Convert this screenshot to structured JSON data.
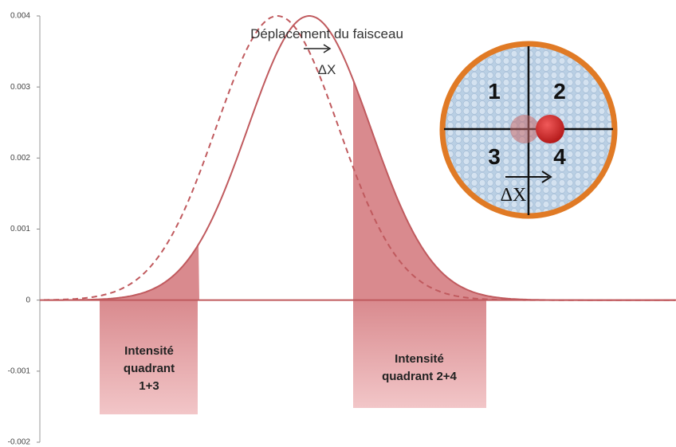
{
  "axis": {
    "ylim": [
      -0.002,
      0.004
    ],
    "yticks": [
      0.004,
      0.003,
      0.002,
      0.001,
      0,
      -0.001,
      -0.002
    ]
  },
  "annotation": {
    "text": "Déplacement du faisceau",
    "delta": "ΔX"
  },
  "quadrant_boxes": [
    {
      "lines": [
        "Intensité",
        "quadrant",
        "1+3"
      ]
    },
    {
      "lines": [
        "Intensité",
        "quadrant  2+4"
      ]
    }
  ],
  "detector": {
    "quadrants": [
      "1",
      "2",
      "3",
      "4"
    ],
    "delta": "ΔX"
  }
}
